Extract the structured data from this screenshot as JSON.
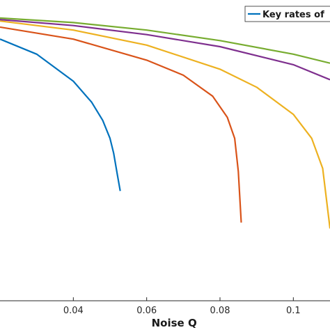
{
  "chart_data": {
    "type": "line",
    "xlabel": "Noise Q",
    "ylabel": "",
    "xlim": [
      0.02,
      0.11
    ],
    "ylim": [
      0.0,
      1.0
    ],
    "x_ticks": [
      0.04,
      0.06,
      0.08,
      0.1
    ],
    "x_tick_labels": [
      "0.04",
      "0.06",
      "0.08",
      "0.1"
    ],
    "grid": false,
    "legend": {
      "placement": "top-right",
      "entries": [
        "Key rates of"
      ]
    },
    "series": [
      {
        "name": "Key rates of",
        "color": "#0072BD",
        "x": [
          0.02,
          0.03,
          0.04,
          0.045,
          0.048,
          0.05,
          0.051,
          0.052,
          0.0528
        ],
        "y": [
          0.87,
          0.82,
          0.73,
          0.66,
          0.6,
          0.54,
          0.49,
          0.42,
          0.365
        ]
      },
      {
        "color": "#D95319",
        "x": [
          0.02,
          0.04,
          0.06,
          0.07,
          0.078,
          0.082,
          0.084,
          0.085,
          0.0858
        ],
        "y": [
          0.91,
          0.87,
          0.8,
          0.75,
          0.68,
          0.61,
          0.54,
          0.43,
          0.26
        ]
      },
      {
        "color": "#EDB120",
        "x": [
          0.02,
          0.04,
          0.06,
          0.08,
          0.09,
          0.1,
          0.105,
          0.108,
          0.11
        ],
        "y": [
          0.93,
          0.9,
          0.85,
          0.77,
          0.71,
          0.62,
          0.54,
          0.44,
          0.24
        ]
      },
      {
        "color": "#7E2F8E",
        "x": [
          0.02,
          0.04,
          0.06,
          0.08,
          0.1,
          0.11
        ],
        "y": [
          0.935,
          0.915,
          0.885,
          0.845,
          0.785,
          0.735
        ]
      },
      {
        "color": "#77AC30",
        "x": [
          0.02,
          0.04,
          0.06,
          0.08,
          0.1,
          0.11
        ],
        "y": [
          0.94,
          0.925,
          0.9,
          0.865,
          0.82,
          0.79
        ]
      }
    ]
  }
}
